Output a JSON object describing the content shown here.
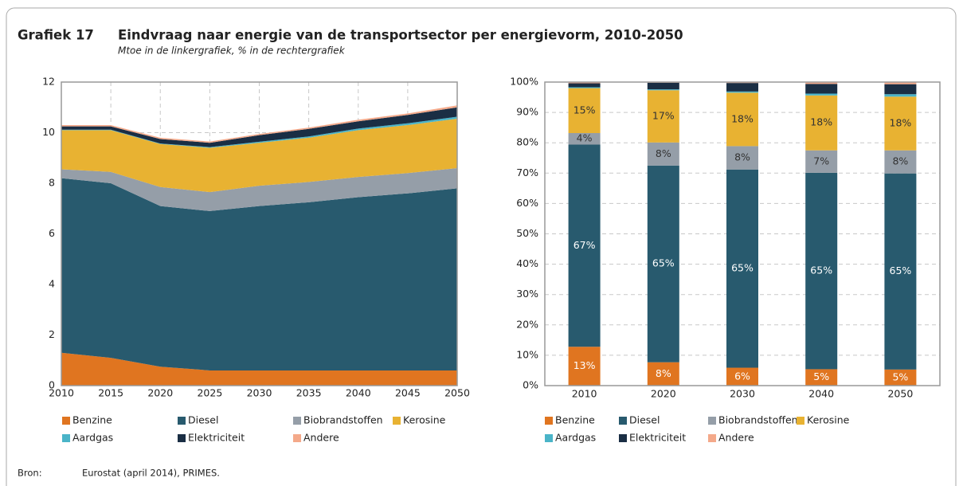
{
  "label": "Grafiek 17",
  "title": "Eindvraag naar energie van de transportsector per energievorm, 2010-2050",
  "subtitle": "Mtoe in de linkergrafiek, % in de rechtergrafiek",
  "source_label": "Bron:",
  "source": "Eurostat (april 2014), PRIMES.",
  "chart_data": [
    {
      "type": "area",
      "stacked": true,
      "grid": true,
      "x": [
        2010,
        2015,
        2020,
        2025,
        2030,
        2035,
        2040,
        2045,
        2050
      ],
      "xlim": [
        2010,
        2050
      ],
      "xticks": [
        2010,
        2015,
        2020,
        2025,
        2030,
        2035,
        2040,
        2045,
        2050
      ],
      "ylim": [
        0,
        12
      ],
      "yticks": [
        0,
        2,
        4,
        6,
        8,
        10,
        12
      ],
      "series": [
        {
          "name": "Benzine",
          "color": "#e07520",
          "values": [
            1.3,
            1.1,
            0.75,
            0.6,
            0.6,
            0.6,
            0.6,
            0.6,
            0.6
          ]
        },
        {
          "name": "Diesel",
          "color": "#285a6e",
          "values": [
            6.9,
            6.9,
            6.35,
            6.3,
            6.5,
            6.65,
            6.85,
            7.0,
            7.2
          ]
        },
        {
          "name": "Biobrandstoffen",
          "color": "#959ea8",
          "values": [
            0.35,
            0.45,
            0.75,
            0.75,
            0.8,
            0.8,
            0.8,
            0.8,
            0.8
          ]
        },
        {
          "name": "Kerosine",
          "color": "#e8b232",
          "values": [
            1.55,
            1.65,
            1.7,
            1.75,
            1.7,
            1.75,
            1.85,
            1.9,
            1.95
          ]
        },
        {
          "name": "Aardgas",
          "color": "#4ab4c8",
          "values": [
            0.02,
            0.02,
            0.02,
            0.03,
            0.04,
            0.05,
            0.06,
            0.07,
            0.08
          ]
        },
        {
          "name": "Elektriciteit",
          "color": "#1a2e44",
          "values": [
            0.13,
            0.13,
            0.18,
            0.17,
            0.26,
            0.3,
            0.29,
            0.33,
            0.37
          ]
        },
        {
          "name": "Andere",
          "color": "#f4a98a",
          "values": [
            0.05,
            0.05,
            0.05,
            0.05,
            0.05,
            0.05,
            0.06,
            0.06,
            0.08
          ]
        }
      ]
    },
    {
      "type": "bar",
      "stacked": true,
      "grid": true,
      "categories": [
        "2010",
        "2020",
        "2030",
        "2040",
        "2050"
      ],
      "ylim": [
        0,
        100
      ],
      "yticks": [
        {
          "value": 0,
          "label": "0%"
        },
        {
          "value": 10,
          "label": "10%"
        },
        {
          "value": 20,
          "label": "20%"
        },
        {
          "value": 30,
          "label": "30%"
        },
        {
          "value": 40,
          "label": "40%"
        },
        {
          "value": 50,
          "label": "50%"
        },
        {
          "value": 60,
          "label": "60%"
        },
        {
          "value": 70,
          "label": "70%"
        },
        {
          "value": 80,
          "label": "80%"
        },
        {
          "value": 90,
          "label": "90%"
        },
        {
          "value": 100,
          "label": "100%"
        }
      ],
      "series": [
        {
          "name": "Benzine",
          "color": "#e07520",
          "values": [
            12.8,
            7.7,
            5.9,
            5.4,
            5.3
          ],
          "value_labels": [
            "13%",
            "8%",
            "6%",
            "5%",
            "5%"
          ]
        },
        {
          "name": "Diesel",
          "color": "#285a6e",
          "values": [
            66.6,
            64.8,
            65.3,
            64.7,
            64.6
          ],
          "value_labels": [
            "67%",
            "65%",
            "65%",
            "65%",
            "65%"
          ]
        },
        {
          "name": "Biobrandstoffen",
          "color": "#959ea8",
          "values": [
            3.8,
            7.6,
            7.7,
            7.4,
            7.6
          ],
          "value_labels": [
            "4%",
            "8%",
            "8%",
            "7%",
            "8%"
          ]
        },
        {
          "name": "Kerosine",
          "color": "#e8b232",
          "values": [
            14.8,
            17.2,
            17.6,
            18.1,
            17.7
          ],
          "value_labels": [
            "15%",
            "17%",
            "18%",
            "18%",
            "18%"
          ]
        },
        {
          "name": "Aardgas",
          "color": "#4ab4c8",
          "values": [
            0.3,
            0.3,
            0.4,
            0.6,
            0.8
          ]
        },
        {
          "name": "Elektriciteit",
          "color": "#1a2e44",
          "values": [
            1.3,
            2.2,
            2.8,
            3.2,
            3.3
          ]
        },
        {
          "name": "Andere",
          "color": "#f4a98a",
          "values": [
            0.4,
            0.2,
            0.3,
            0.6,
            0.7
          ]
        }
      ]
    }
  ]
}
